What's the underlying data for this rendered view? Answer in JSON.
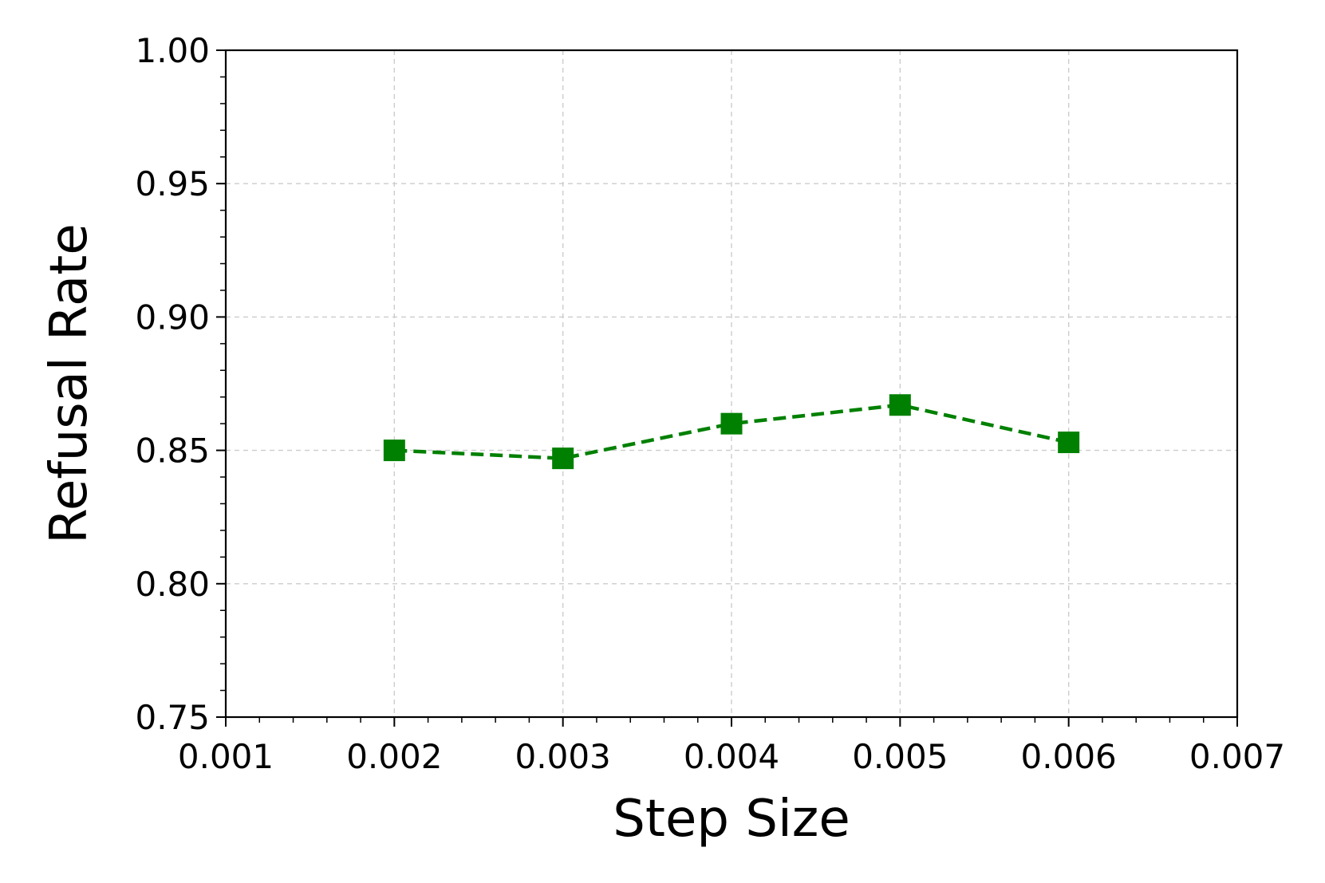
{
  "chart_data": {
    "type": "line",
    "xlabel": "Step Size",
    "ylabel": "Refusal Rate",
    "xlim": [
      0.001,
      0.007
    ],
    "ylim": [
      0.75,
      1.0
    ],
    "x_ticks": [
      "0.001",
      "0.002",
      "0.003",
      "0.004",
      "0.005",
      "0.006",
      "0.007"
    ],
    "y_ticks": [
      "0.75",
      "0.80",
      "0.85",
      "0.90",
      "0.95",
      "1.00"
    ],
    "grid": true,
    "series": [
      {
        "color": "#008000",
        "line_style": "dashed",
        "marker": "square",
        "x": [
          0.002,
          0.003,
          0.004,
          0.005,
          0.006
        ],
        "y": [
          0.85,
          0.847,
          0.86,
          0.867,
          0.853
        ]
      }
    ]
  }
}
